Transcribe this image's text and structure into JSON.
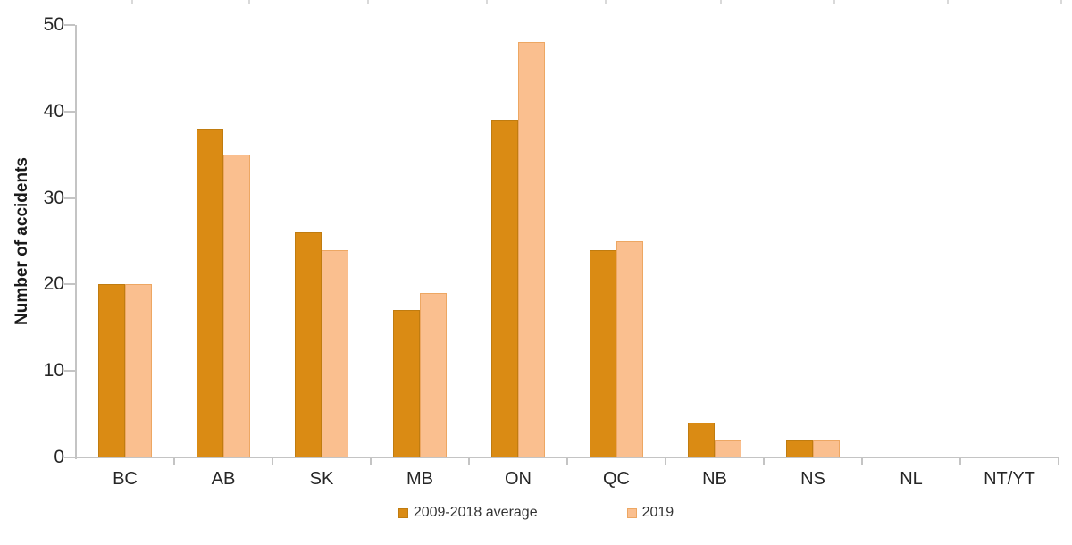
{
  "chart_data": {
    "type": "bar",
    "title": "",
    "xlabel": "",
    "ylabel": "Number of accidents",
    "categories": [
      "BC",
      "AB",
      "SK",
      "MB",
      "ON",
      "QC",
      "NB",
      "NS",
      "NL",
      "NT/YT"
    ],
    "series": [
      {
        "name": "2009-2018 average",
        "color": "#da8b14",
        "border_color": "#c07c10",
        "values": [
          20,
          38,
          26,
          17,
          39,
          24,
          4,
          2,
          0,
          0
        ]
      },
      {
        "name": "2019",
        "color": "#fabf8f",
        "border_color": "#eda763",
        "values": [
          20,
          35,
          24,
          19,
          48,
          25,
          2,
          2,
          0,
          0
        ]
      }
    ],
    "y_axis": {
      "min": 0,
      "max": 50,
      "tick_step": 10,
      "ticks": [
        0,
        10,
        20,
        30,
        40,
        50
      ]
    },
    "grid": false,
    "legend_position": "bottom",
    "axis_color": "#c4c4c4",
    "text_color": "#262626"
  }
}
